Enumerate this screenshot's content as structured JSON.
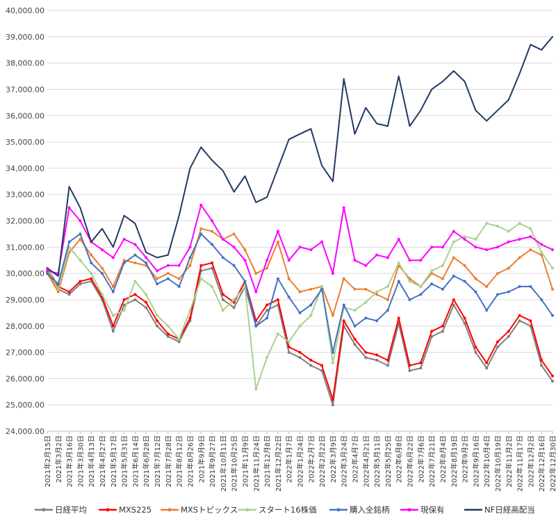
{
  "chart_data": {
    "type": "line",
    "ylim": [
      24000,
      40000
    ],
    "ytick_step": 1000,
    "ytick_labels": [
      "24,000.00",
      "25,000.00",
      "26,000.00",
      "27,000.00",
      "28,000.00",
      "29,000.00",
      "30,000.00",
      "31,000.00",
      "32,000.00",
      "33,000.00",
      "34,000.00",
      "35,000.00",
      "36,000.00",
      "37,000.00",
      "38,000.00",
      "39,000.00",
      "40,000.00"
    ],
    "grid": true,
    "legend_position": "bottom",
    "categories": [
      "2021年2月15日",
      "2021年3月2日",
      "2021年3月16日",
      "2021年3月30日",
      "2021年4月13日",
      "2021年4月27日",
      "2021年5月17日",
      "2021年5月31日",
      "2021年6月14日",
      "2021年6月28日",
      "2021年7月12日",
      "2021年7月28日",
      "2021年8月12日",
      "2021年8月26日",
      "2021年9月9日",
      "2021年9月27日",
      "2021年10月11日",
      "2021年10月25日",
      "2021年11月9日",
      "2021年11月24日",
      "2021年12月8日",
      "2021年12月22日",
      "2022年1月7日",
      "2022年1月24日",
      "2022年2月7日",
      "2022年2月22日",
      "2022年3月9日",
      "2022年3月24日",
      "2022年4月7日",
      "2022年4月21日",
      "2022年5月11日",
      "2022年5月25日",
      "2022年6月8日",
      "2022年6月22日",
      "2022年7月6日",
      "2022年7月21日",
      "2022年8月4日",
      "2022年8月19日",
      "2022年9月2日",
      "2022年9月16日",
      "2022年10月4日",
      "2022年10月19日",
      "2022年11月2日",
      "2022年11月17日",
      "2022年12月2日",
      "2022年12月16日",
      "2022年12月30日"
    ],
    "series": [
      {
        "name": "日経平均",
        "color": "#7f7f7f",
        "values": [
          30100,
          29400,
          29200,
          29600,
          29700,
          29000,
          27800,
          28800,
          29000,
          28700,
          28000,
          27600,
          27400,
          28200,
          30100,
          30200,
          29000,
          28700,
          29500,
          28000,
          28600,
          28800,
          27000,
          26800,
          26500,
          26300,
          25000,
          28000,
          27300,
          26800,
          26700,
          26500,
          28100,
          26300,
          26400,
          27600,
          27800,
          28800,
          28100,
          27000,
          26400,
          27200,
          27600,
          28200,
          28000,
          26500,
          25900
        ]
      },
      {
        "name": "MXS225",
        "color": "#ff0000",
        "values": [
          30200,
          29500,
          29300,
          29700,
          29800,
          29100,
          28000,
          29000,
          29200,
          28900,
          28200,
          27700,
          27500,
          28300,
          30300,
          30400,
          29200,
          28900,
          29700,
          28200,
          28800,
          29000,
          27200,
          27000,
          26700,
          26500,
          25200,
          28200,
          27500,
          27000,
          26900,
          26700,
          28300,
          26500,
          26600,
          27800,
          28000,
          29000,
          28300,
          27200,
          26600,
          27400,
          27800,
          28400,
          28200,
          26700,
          26100
        ]
      },
      {
        "name": "MXSトピックス",
        "color": "#ed7d31",
        "values": [
          30000,
          29300,
          30800,
          31300,
          30700,
          30200,
          29500,
          30500,
          30400,
          30300,
          29800,
          30000,
          29800,
          30300,
          31700,
          31600,
          31300,
          31500,
          30900,
          30000,
          30200,
          31200,
          29800,
          29300,
          29400,
          29500,
          28400,
          29800,
          29400,
          29400,
          29200,
          29000,
          30300,
          29800,
          29500,
          30000,
          29800,
          30600,
          30300,
          29800,
          29500,
          30000,
          30200,
          30600,
          30900,
          30700,
          29400
        ]
      },
      {
        "name": "スタート16株価",
        "color": "#a9d18e",
        "values": [
          30200,
          29400,
          31000,
          30500,
          30000,
          29200,
          28400,
          28600,
          29700,
          29200,
          28400,
          28000,
          27500,
          28600,
          29800,
          29500,
          28600,
          29000,
          29500,
          25600,
          26800,
          27700,
          27400,
          28000,
          28400,
          29500,
          26600,
          28700,
          28600,
          28900,
          29300,
          29500,
          30400,
          29700,
          29500,
          30100,
          30300,
          31200,
          31400,
          31300,
          31900,
          31800,
          31600,
          31900,
          31700,
          30800,
          30200
        ]
      },
      {
        "name": "購入全銘柄",
        "color": "#4472c4",
        "values": [
          30000,
          29600,
          31200,
          31500,
          30400,
          30000,
          29300,
          30400,
          30700,
          30400,
          29600,
          29800,
          29500,
          30600,
          31500,
          31100,
          30600,
          30300,
          29700,
          28000,
          28300,
          29800,
          29100,
          28500,
          28800,
          29400,
          27000,
          28800,
          28000,
          28300,
          28200,
          28600,
          29700,
          29000,
          29200,
          29600,
          29400,
          29900,
          29700,
          29300,
          28600,
          29200,
          29300,
          29500,
          29500,
          29000,
          28400
        ]
      },
      {
        "name": "現保有",
        "color": "#ff00ff",
        "values": [
          30100,
          30000,
          32500,
          32000,
          31200,
          30900,
          30600,
          31300,
          31100,
          30600,
          30100,
          30300,
          30300,
          31000,
          32600,
          32000,
          31300,
          31000,
          30500,
          29300,
          30500,
          31600,
          30500,
          31000,
          30900,
          31200,
          30000,
          32500,
          30500,
          30300,
          30700,
          30600,
          31300,
          30500,
          30500,
          31000,
          31000,
          31600,
          31300,
          31000,
          30900,
          31000,
          31200,
          31300,
          31400,
          31100,
          30900
        ]
      },
      {
        "name": "NF日経高配当",
        "color": "#203864",
        "values": [
          30200,
          29900,
          33300,
          32500,
          31200,
          31700,
          31000,
          32200,
          31900,
          30800,
          30600,
          30700,
          32200,
          34000,
          34800,
          34300,
          33900,
          33100,
          33700,
          32700,
          32900,
          34000,
          35100,
          35300,
          35500,
          34100,
          33500,
          37400,
          35300,
          36300,
          35700,
          35600,
          37500,
          35600,
          36200,
          37000,
          37300,
          37700,
          37300,
          36200,
          35800,
          36200,
          36600,
          37600,
          38700,
          38500,
          39000
        ]
      }
    ]
  }
}
